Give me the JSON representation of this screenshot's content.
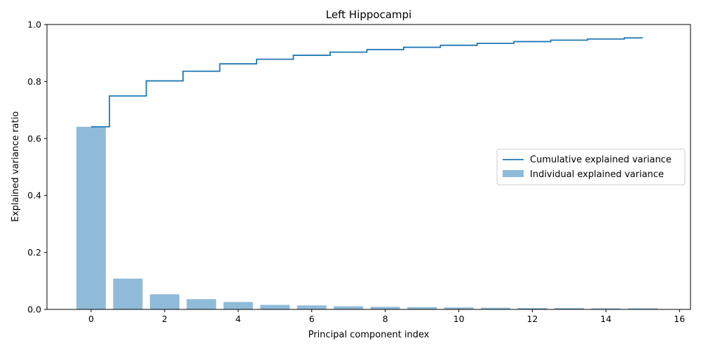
{
  "chart_data": {
    "type": "bar",
    "title": "Left Hippocampi",
    "xlabel": "Principal component index",
    "ylabel": "Explained variance ratio",
    "xlim": [
      -1.2,
      16.3
    ],
    "ylim": [
      0,
      1.0
    ],
    "xticks": [
      0,
      2,
      4,
      6,
      8,
      10,
      12,
      14,
      16
    ],
    "yticks": [
      0.0,
      0.2,
      0.4,
      0.6,
      0.8,
      1.0
    ],
    "xtick_labels": [
      "0",
      "2",
      "4",
      "6",
      "8",
      "10",
      "12",
      "14",
      "16"
    ],
    "ytick_labels": [
      "0.0",
      "0.2",
      "0.4",
      "0.6",
      "0.8",
      "1.0"
    ],
    "x": [
      0,
      1,
      2,
      3,
      4,
      5,
      6,
      7,
      8,
      9,
      10,
      11,
      12,
      13,
      14,
      15
    ],
    "series": [
      {
        "name": "Individual explained variance",
        "type": "bar",
        "color": "#1f77b4",
        "opacity": 0.5,
        "values": [
          0.641,
          0.108,
          0.053,
          0.036,
          0.026,
          0.016,
          0.014,
          0.011,
          0.009,
          0.008,
          0.007,
          0.006,
          0.005,
          0.005,
          0.004,
          0.004
        ]
      },
      {
        "name": "Cumulative explained variance",
        "type": "step",
        "color": "#1f77b4",
        "values": [
          0.641,
          0.749,
          0.802,
          0.836,
          0.862,
          0.878,
          0.892,
          0.903,
          0.912,
          0.92,
          0.927,
          0.934,
          0.94,
          0.945,
          0.949,
          0.953
        ]
      }
    ],
    "legend_placement": "center-right",
    "grid": false
  }
}
